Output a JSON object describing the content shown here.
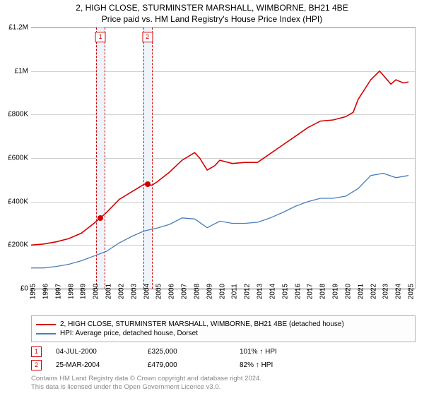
{
  "title": "2, HIGH CLOSE, STURMINSTER MARSHALL, WIMBORNE, BH21 4BE",
  "subtitle": "Price paid vs. HM Land Registry's House Price Index (HPI)",
  "chart": {
    "type": "line",
    "ylim": [
      0,
      1200000
    ],
    "ytick_step": 200000,
    "ylabels": [
      "£0",
      "£200K",
      "£400K",
      "£600K",
      "£800K",
      "£1M",
      "£1.2M"
    ],
    "grid_color": "#d0d0d0",
    "axis_color": "#666666",
    "background_color": "#ffffff",
    "x_years": [
      1995,
      1996,
      1997,
      1998,
      1999,
      2000,
      2001,
      2002,
      2003,
      2004,
      2005,
      2006,
      2007,
      2008,
      2009,
      2010,
      2011,
      2012,
      2013,
      2014,
      2015,
      2016,
      2017,
      2018,
      2019,
      2020,
      2021,
      2022,
      2023,
      2024,
      2025
    ],
    "x_domain": [
      1995,
      2025.5
    ],
    "series": [
      {
        "name": "price_paid",
        "color": "#d40000",
        "width": 1.6,
        "points": [
          [
            1995,
            200000
          ],
          [
            1996,
            205000
          ],
          [
            1997,
            215000
          ],
          [
            1998,
            230000
          ],
          [
            1999,
            255000
          ],
          [
            2000,
            300000
          ],
          [
            2000.5,
            325000
          ],
          [
            2001,
            350000
          ],
          [
            2002,
            410000
          ],
          [
            2003,
            445000
          ],
          [
            2004,
            480000
          ],
          [
            2004.23,
            479000
          ],
          [
            2004.6,
            475000
          ],
          [
            2005,
            490000
          ],
          [
            2006,
            535000
          ],
          [
            2007,
            590000
          ],
          [
            2008,
            625000
          ],
          [
            2008.4,
            600000
          ],
          [
            2009,
            545000
          ],
          [
            2009.6,
            565000
          ],
          [
            2010,
            590000
          ],
          [
            2011,
            575000
          ],
          [
            2012,
            580000
          ],
          [
            2013,
            580000
          ],
          [
            2014,
            620000
          ],
          [
            2015,
            660000
          ],
          [
            2016,
            700000
          ],
          [
            2017,
            740000
          ],
          [
            2018,
            770000
          ],
          [
            2019,
            775000
          ],
          [
            2020,
            790000
          ],
          [
            2020.6,
            810000
          ],
          [
            2021,
            870000
          ],
          [
            2022,
            960000
          ],
          [
            2022.7,
            1000000
          ],
          [
            2023,
            980000
          ],
          [
            2023.6,
            940000
          ],
          [
            2024,
            960000
          ],
          [
            2024.6,
            945000
          ],
          [
            2025,
            950000
          ]
        ]
      },
      {
        "name": "hpi",
        "color": "#4a7ebb",
        "width": 1.3,
        "points": [
          [
            1995,
            95000
          ],
          [
            1996,
            95000
          ],
          [
            1997,
            102000
          ],
          [
            1998,
            112000
          ],
          [
            1999,
            128000
          ],
          [
            2000,
            150000
          ],
          [
            2001,
            172000
          ],
          [
            2002,
            210000
          ],
          [
            2003,
            240000
          ],
          [
            2004,
            265000
          ],
          [
            2005,
            278000
          ],
          [
            2006,
            295000
          ],
          [
            2007,
            325000
          ],
          [
            2008,
            320000
          ],
          [
            2009,
            280000
          ],
          [
            2010,
            310000
          ],
          [
            2011,
            300000
          ],
          [
            2012,
            300000
          ],
          [
            2013,
            305000
          ],
          [
            2014,
            325000
          ],
          [
            2015,
            350000
          ],
          [
            2016,
            378000
          ],
          [
            2017,
            400000
          ],
          [
            2018,
            415000
          ],
          [
            2019,
            415000
          ],
          [
            2020,
            425000
          ],
          [
            2021,
            460000
          ],
          [
            2022,
            520000
          ],
          [
            2023,
            530000
          ],
          [
            2024,
            510000
          ],
          [
            2025,
            520000
          ]
        ]
      }
    ],
    "sale_markers": [
      {
        "n": "1",
        "x": 2000.5,
        "y": 325000,
        "color": "#d40000",
        "band_color": "#eef4fb"
      },
      {
        "n": "2",
        "x": 2004.23,
        "y": 479000,
        "color": "#d40000",
        "band_color": "#eef4fb"
      }
    ]
  },
  "legend": {
    "items": [
      {
        "color": "#d40000",
        "label": "2, HIGH CLOSE, STURMINSTER MARSHALL, WIMBORNE, BH21 4BE (detached house)"
      },
      {
        "color": "#4a7ebb",
        "label": "HPI: Average price, detached house, Dorset"
      }
    ]
  },
  "sales_table": [
    {
      "n": "1",
      "box_color": "#d40000",
      "date": "04-JUL-2000",
      "price": "£325,000",
      "change": "101% ↑ HPI"
    },
    {
      "n": "2",
      "box_color": "#d40000",
      "date": "25-MAR-2004",
      "price": "£479,000",
      "change": "82% ↑ HPI"
    }
  ],
  "footer": {
    "line1": "Contains HM Land Registry data © Crown copyright and database right 2024.",
    "line2": "This data is licensed under the Open Government Licence v3.0."
  }
}
